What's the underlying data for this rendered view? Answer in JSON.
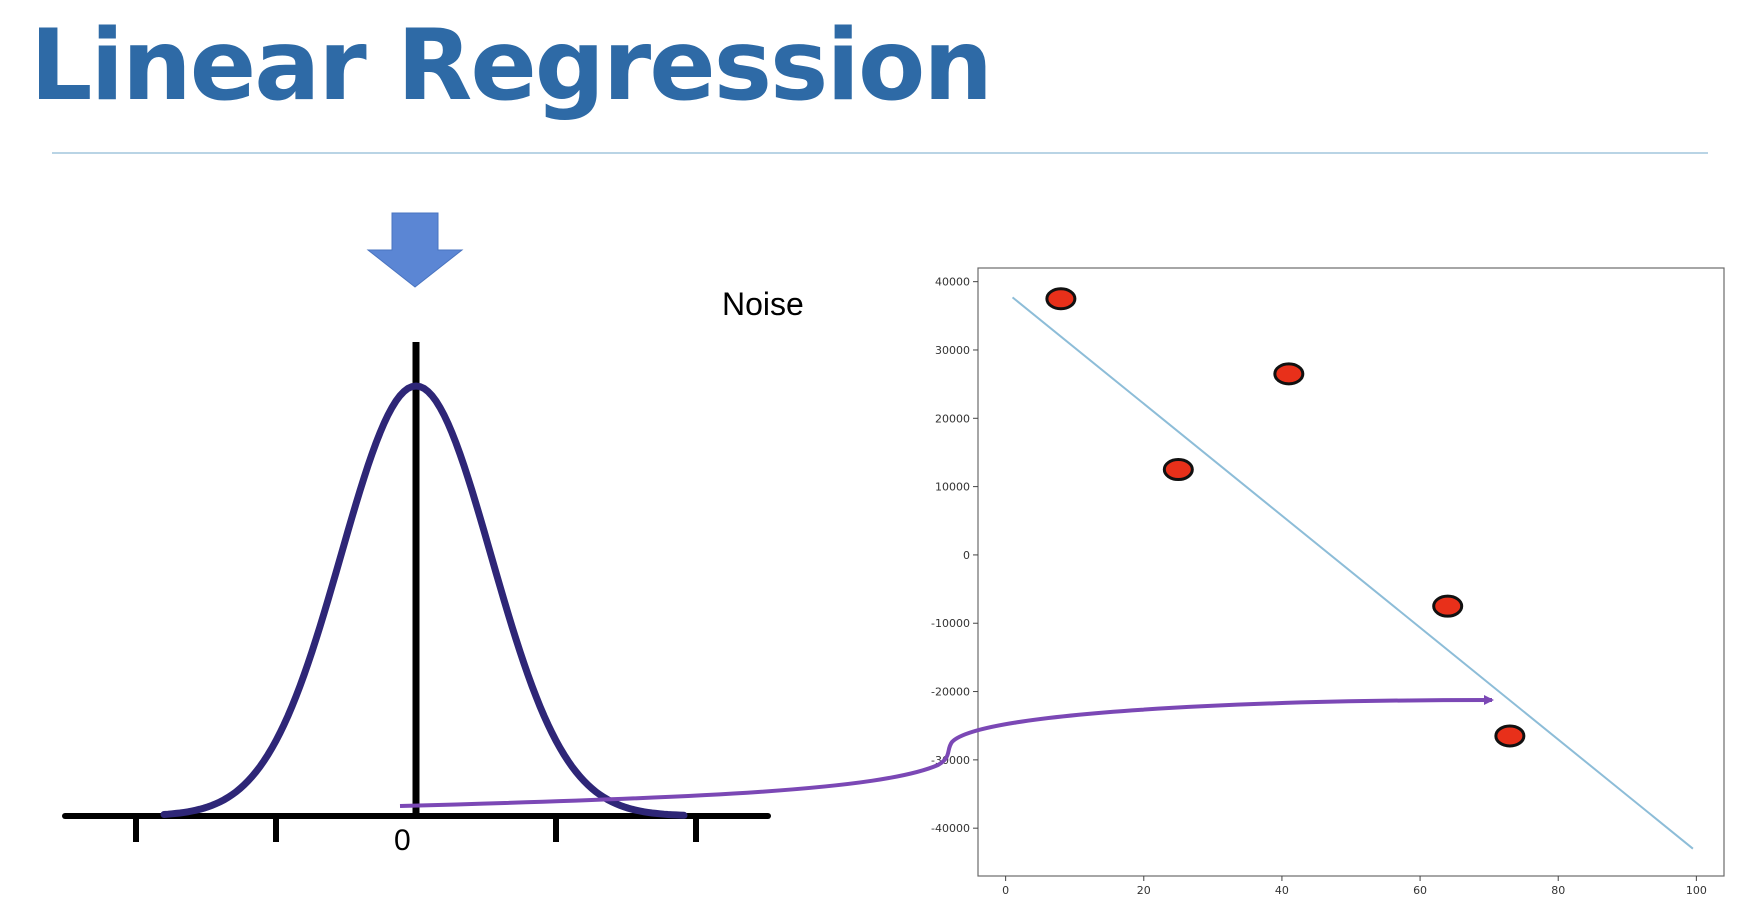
{
  "slide": {
    "title": "Linear Regression",
    "noise_label": "Noise",
    "zero_label": "0"
  },
  "colors": {
    "title": "#2e6aa6",
    "rule": "#b9d4e5",
    "down_arrow": "#5b86d4",
    "bell_curve": "#2e2677",
    "connector_arrow": "#7b48b5",
    "regression_line": "#8dbdd8",
    "point_fill": "#e8301a",
    "point_stroke": "#111111"
  },
  "chart_data": {
    "type": "scatter",
    "x": [
      8,
      25,
      41,
      64,
      73
    ],
    "y": [
      37500,
      12500,
      26500,
      -7500,
      -26500
    ],
    "xlim": [
      -4,
      104
    ],
    "ylim": [
      -47000,
      42000
    ],
    "xticks": [
      0,
      20,
      40,
      60,
      80,
      100
    ],
    "yticks": [
      40000,
      30000,
      20000,
      10000,
      0,
      -10000,
      -20000,
      -30000,
      -40000
    ],
    "xtick_labels": [
      "0",
      "20",
      "40",
      "60",
      "80",
      "100"
    ],
    "ytick_labels": [
      "40000",
      "30000",
      "20000",
      "10000",
      "0",
      "-10000",
      "-20000",
      "-30000",
      "-40000"
    ],
    "fit_line": {
      "x": [
        1,
        99.5
      ],
      "y": [
        37700,
        -43000
      ]
    },
    "connector_target": {
      "x": 71,
      "y": -21000
    },
    "grid": false
  }
}
